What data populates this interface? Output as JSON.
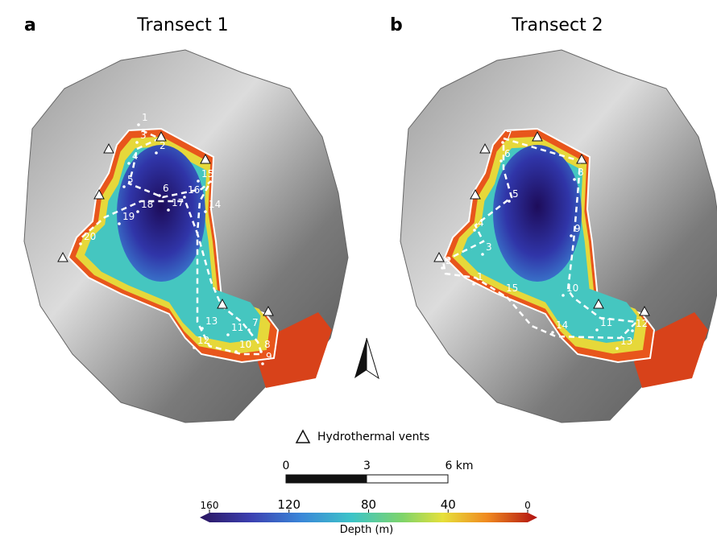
{
  "panels": [
    {
      "letter": "a",
      "title": "Transect 1",
      "stations": [
        "1",
        "2",
        "3",
        "4",
        "5",
        "6",
        "7",
        "8",
        "9",
        "10",
        "11",
        "12",
        "13",
        "14",
        "15",
        "16",
        "17",
        "18",
        "19",
        "20"
      ]
    },
    {
      "letter": "b",
      "title": "Transect 2",
      "stations": [
        "1",
        "2",
        "3",
        "4",
        "5",
        "6",
        "7",
        "8",
        "9",
        "10",
        "11",
        "12",
        "13",
        "14",
        "15"
      ]
    }
  ],
  "legend": {
    "vents": "Hydrothermal vents"
  },
  "scale_bar": {
    "ticks": [
      0,
      3,
      {
        "value": 6,
        "label": "6 km"
      }
    ]
  },
  "colorbar": {
    "label": "Depth (m)",
    "ticks": [
      160,
      120,
      80,
      40,
      0
    ]
  }
}
